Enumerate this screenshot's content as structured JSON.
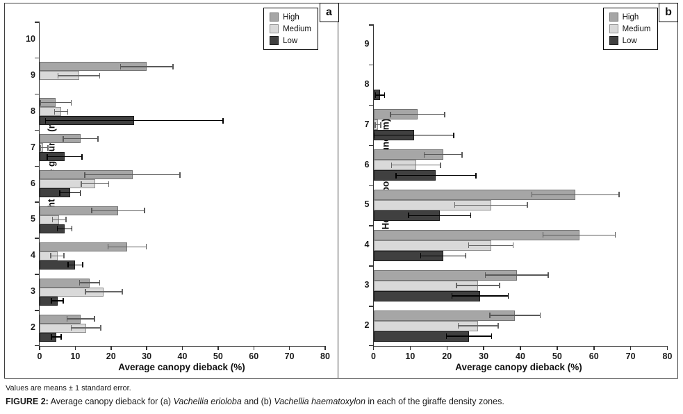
{
  "figure": {
    "note": "Values are means ± 1 standard error.",
    "caption": {
      "label": "FIGURE 2:",
      "pre": " Average canopy dieback for (a) ",
      "species_a": "Vachellia erioloba",
      "mid": " and (b) ",
      "species_b": "Vachellia haematoxylon",
      "post": " in each of the giraffe density zones."
    }
  },
  "legend": {
    "items": [
      {
        "label": "High",
        "color": "#a6a6a6",
        "border": "#737373"
      },
      {
        "label": "Medium",
        "color": "#d9d9d9",
        "border": "#8c8c8c"
      },
      {
        "label": "Low",
        "color": "#404040",
        "border": "#1a1a1a"
      }
    ]
  },
  "chart_data": [
    {
      "type": "bar",
      "orientation": "horizontal",
      "panel_label": "a",
      "xlabel": "Average canopy dieback (%)",
      "ylabel": "Height above ground (m)",
      "xlim": [
        0,
        80
      ],
      "xticks": [
        0,
        10,
        20,
        30,
        40,
        50,
        60,
        70,
        80
      ],
      "grid": false,
      "legend_position": "top-right",
      "categories": [
        "10",
        "9",
        "8",
        "7",
        "6",
        "5",
        "4",
        "3",
        "2"
      ],
      "series": [
        {
          "name": "High",
          "color": "#a6a6a6",
          "border": "#737373",
          "err_color": "#595959",
          "values": [
            null,
            30,
            4.5,
            11.5,
            26,
            22,
            24.5,
            14,
            11.5
          ],
          "se": [
            null,
            7.5,
            4.5,
            5,
            13.5,
            7.5,
            5.5,
            3,
            4
          ]
        },
        {
          "name": "Medium",
          "color": "#d9d9d9",
          "border": "#8c8c8c",
          "err_color": "#666666",
          "values": [
            null,
            11,
            6,
            1,
            15.5,
            5.5,
            5,
            18,
            13
          ],
          "se": [
            null,
            6,
            2,
            1.5,
            4,
            2,
            2,
            5.3,
            4.3
          ]
        },
        {
          "name": "Low",
          "color": "#404040",
          "border": "#1a1a1a",
          "err_color": "#000000",
          "values": [
            null,
            null,
            26.5,
            7,
            8.5,
            7,
            10,
            5,
            4.7
          ],
          "se": [
            null,
            null,
            25,
            5,
            3,
            2.2,
            2.2,
            1.8,
            1.5
          ]
        }
      ]
    },
    {
      "type": "bar",
      "orientation": "horizontal",
      "panel_label": "b",
      "xlabel": "Average canopy dieback (%)",
      "ylabel": "Height above ground (m)",
      "xlim": [
        0,
        80
      ],
      "xticks": [
        0,
        10,
        20,
        30,
        40,
        50,
        60,
        70,
        80
      ],
      "grid": false,
      "legend_position": "top-right",
      "categories": [
        "9",
        "8",
        "7",
        "6",
        "5",
        "4",
        "3",
        "2"
      ],
      "series": [
        {
          "name": "High",
          "color": "#a6a6a6",
          "border": "#737373",
          "err_color": "#595959",
          "values": [
            null,
            null,
            12,
            19,
            55,
            56,
            39,
            38.5
          ],
          "se": [
            null,
            null,
            7.5,
            5.3,
            12,
            10,
            8.7,
            7
          ]
        },
        {
          "name": "Medium",
          "color": "#d9d9d9",
          "border": "#8c8c8c",
          "err_color": "#666666",
          "values": [
            null,
            null,
            1.2,
            11.6,
            32,
            32,
            28.5,
            28.5
          ],
          "se": [
            null,
            null,
            0.9,
            6.8,
            10,
            6.2,
            6,
            5.6
          ]
        },
        {
          "name": "Low",
          "color": "#404040",
          "border": "#1a1a1a",
          "err_color": "#000000",
          "values": [
            null,
            1.8,
            11,
            17,
            18,
            19,
            29,
            26
          ],
          "se": [
            null,
            1.4,
            11,
            11,
            8.6,
            6.3,
            7.8,
            6.3
          ]
        }
      ]
    }
  ]
}
